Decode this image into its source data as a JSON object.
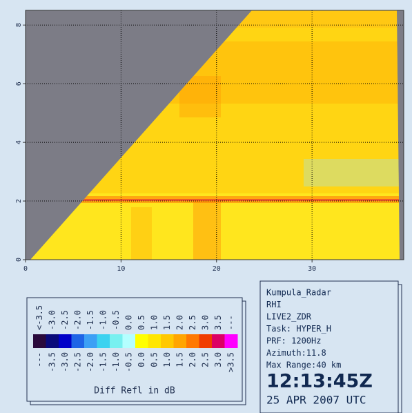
{
  "plot": {
    "xlim": [
      0,
      39.6
    ],
    "ylim": [
      0,
      8.5
    ],
    "xticks": [
      0,
      10,
      20,
      30
    ],
    "yticks": [
      0,
      2,
      4,
      6,
      8
    ]
  },
  "legend": {
    "title": "Diff Refl in dB",
    "top_labels": [
      "<-3.5",
      "-3.0",
      "-2.5",
      "-2.0",
      "-1.5",
      "-1.0",
      "-0.5",
      "0.0",
      "0.5",
      "1.0",
      "1.5",
      "2.0",
      "2.5",
      "3.0",
      "3.5",
      "---"
    ],
    "bottom_labels": [
      "---",
      "-3.5",
      "-3.0",
      "-2.5",
      "-2.0",
      "-1.5",
      "-1.0",
      "-0.5",
      "0.0",
      "0.5",
      "1.0",
      "1.5",
      "2.0",
      "2.5",
      "3.0",
      ">3.5"
    ],
    "colors": [
      "#2a0a3c",
      "#0a0a7a",
      "#0000c8",
      "#1e64e6",
      "#3ca0f5",
      "#3cd2f0",
      "#78f0f0",
      "#b4ffff",
      "#ffff00",
      "#ffe600",
      "#ffc800",
      "#ffa500",
      "#ff7800",
      "#f03c00",
      "#dc0064",
      "#ff00ff"
    ]
  },
  "info": {
    "lines": [
      "Kumpula_Radar",
      "RHI",
      "LIVE2_ZDR",
      "Task: HYPER_H",
      "PRF: 1200Hz",
      "Azimuth:11.8",
      "Max Range:40 km"
    ],
    "time": "12:13:45Z",
    "date": "25 APR 2007 UTC"
  }
}
